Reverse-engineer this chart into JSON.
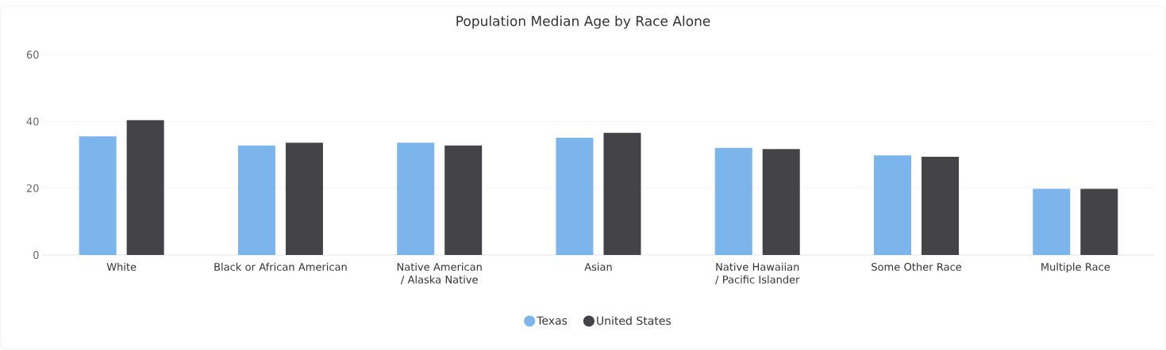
{
  "chart_data": {
    "type": "bar",
    "title": "Population Median Age by Race Alone",
    "categories": [
      "White",
      "Black or African American",
      "Native American / Alaska Native",
      "Asian",
      "Native Hawaiian / Pacific Islander",
      "Some Other Race",
      "Multiple Race"
    ],
    "series": [
      {
        "name": "Texas",
        "color": "#7cb5ec",
        "values": [
          35.5,
          32.8,
          33.6,
          35.1,
          32.1,
          29.8,
          19.8
        ]
      },
      {
        "name": "United States",
        "color": "#434348",
        "values": [
          40.4,
          33.6,
          32.8,
          36.6,
          31.7,
          29.4,
          19.8
        ]
      }
    ],
    "ylim": [
      0,
      60
    ],
    "yticks": [
      0,
      20,
      40,
      60
    ],
    "grid": "y",
    "legend": "bottom"
  }
}
